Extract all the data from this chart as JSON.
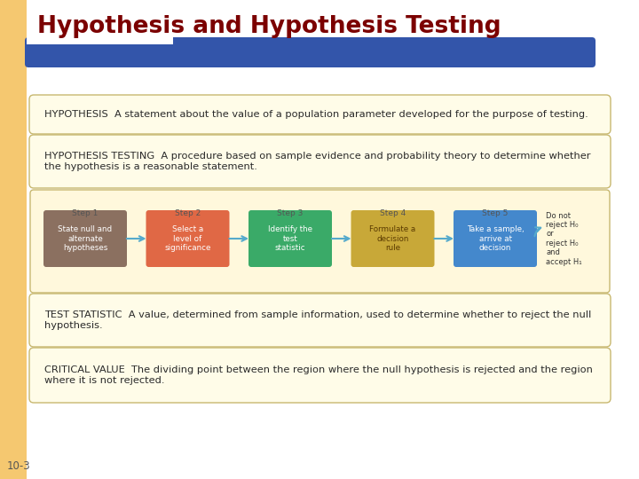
{
  "title": "Hypothesis and Hypothesis Testing",
  "title_color": "#7B0000",
  "background_color": "#FFFFFF",
  "left_bar_color": "#F5C870",
  "blue_bar_color": "#3355AA",
  "box1_text": "HYPOTHESIS  A statement about the value of a population parameter developed for the purpose of testing.",
  "box2_line1": "HYPOTHESIS TESTING  A procedure based on sample evidence and probability theory to determine whether",
  "box2_line2": "the hypothesis is a reasonable statement.",
  "box3_line1": "TEST STATISTIC  A value, determined from sample information, used to determine whether to reject the null",
  "box3_line2": "hypothesis.",
  "box4_line1": "CRITICAL VALUE  The dividing point between the region where the null hypothesis is rejected and the region",
  "box4_line2": "where it is not rejected.",
  "box_bg": "#FFFCE8",
  "box_border": "#C8B870",
  "steps": [
    "Step 1",
    "Step 2",
    "Step 3",
    "Step 4",
    "Step 5"
  ],
  "step_labels": [
    "State null and\nalternate\nhypotheses",
    "Select a\nlevel of\nsignificance",
    "Identify the\ntest\nstatistic",
    "Formulate a\ndecision\nrule",
    "Take a sample,\narrive at\ndecision"
  ],
  "step_colors": [
    "#8B7060",
    "#E06845",
    "#3AAA68",
    "#C8A838",
    "#4488CC"
  ],
  "step_text_colors": [
    "#FFFFFF",
    "#FFFFFF",
    "#FFFFFF",
    "#5A3A00",
    "#FFFFFF"
  ],
  "arrow_color": "#55AACC",
  "outcome_lines": [
    "Do not",
    "reject H₀",
    "or",
    "reject H₀",
    "and",
    "accept H₁"
  ],
  "footer_text": "10-3",
  "diagram_bg": "#FFF8DC",
  "diagram_border": "#C8B870"
}
